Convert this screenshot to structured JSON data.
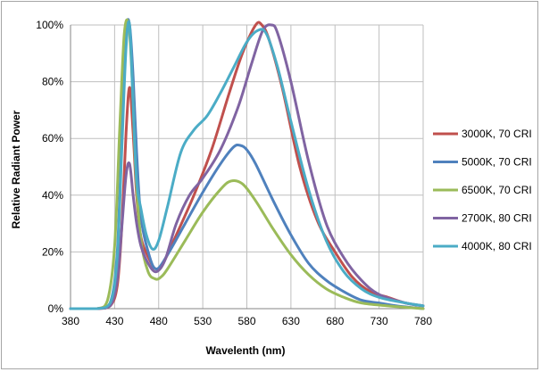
{
  "chart_data": {
    "type": "line",
    "title": "",
    "xlabel": "Wavelenth (nm)",
    "ylabel": "Relative Radiant Power",
    "xlim": [
      380,
      780
    ],
    "ylim": [
      0,
      100
    ],
    "x_ticks": [
      380,
      430,
      480,
      530,
      580,
      630,
      680,
      730,
      780
    ],
    "y_ticks": [
      0,
      20,
      40,
      60,
      80,
      100
    ],
    "y_tick_labels": [
      "0%",
      "20%",
      "40%",
      "60%",
      "80%",
      "100%"
    ],
    "grid": true,
    "legend_position": "right",
    "series": [
      {
        "name": "3000K, 70 CRI",
        "color": "#c0504d",
        "x": [
          380,
          410,
          425,
          433,
          438,
          443,
          447,
          451,
          455,
          460,
          470,
          477,
          485,
          500,
          520,
          540,
          560,
          575,
          590,
          597,
          605,
          620,
          640,
          660,
          680,
          700,
          720,
          740,
          760,
          780
        ],
        "y": [
          0,
          0,
          1,
          8,
          28,
          62,
          78,
          62,
          40,
          25,
          17,
          14,
          16,
          26,
          40,
          56,
          76,
          90,
          100,
          100,
          95,
          78,
          50,
          31,
          20,
          11,
          6,
          4,
          2,
          1
        ]
      },
      {
        "name": "5000K, 70 CRI",
        "color": "#4f81bd",
        "x": [
          380,
          410,
          425,
          433,
          438,
          443,
          447,
          451,
          455,
          460,
          470,
          478,
          490,
          510,
          530,
          550,
          565,
          573,
          580,
          590,
          610,
          630,
          650,
          670,
          690,
          710,
          730,
          750,
          780
        ],
        "y": [
          0,
          0,
          2,
          20,
          60,
          97,
          100,
          82,
          55,
          32,
          18,
          14,
          19,
          30,
          41,
          51,
          57,
          57.5,
          56,
          51,
          38,
          26,
          16,
          10,
          6,
          3,
          2,
          1,
          0
        ]
      },
      {
        "name": "6500K, 70 CRI",
        "color": "#9bbb59",
        "x": [
          380,
          410,
          422,
          430,
          436,
          441,
          446,
          450,
          454,
          460,
          468,
          476,
          482,
          490,
          510,
          530,
          550,
          562,
          575,
          590,
          610,
          630,
          650,
          670,
          690,
          710,
          740,
          780
        ],
        "y": [
          0,
          0,
          3,
          22,
          65,
          97,
          100,
          80,
          48,
          24,
          13,
          10.5,
          11,
          14,
          24,
          34,
          42,
          45,
          44,
          38,
          28,
          19,
          12,
          7,
          4,
          2,
          1,
          0
        ]
      },
      {
        "name": "2700K, 80 CRI",
        "color": "#8064a2",
        "x": [
          380,
          410,
          425,
          433,
          438,
          443,
          447,
          451,
          455,
          460,
          468,
          477,
          487,
          500,
          515,
          530,
          550,
          570,
          585,
          598,
          608,
          615,
          630,
          650,
          670,
          690,
          710,
          730,
          760,
          780
        ],
        "y": [
          0,
          0,
          1,
          10,
          28,
          47,
          51,
          40,
          30,
          22,
          16,
          13,
          17,
          30,
          40,
          46,
          56,
          71,
          86,
          98,
          100,
          97,
          80,
          52,
          30,
          18,
          10,
          5,
          2,
          1
        ]
      },
      {
        "name": "4000K, 80 CRI",
        "color": "#4bacc6",
        "x": [
          380,
          410,
          425,
          433,
          438,
          443,
          447,
          451,
          455,
          460,
          466,
          473,
          480,
          490,
          505,
          520,
          535,
          550,
          565,
          580,
          592,
          602,
          615,
          630,
          650,
          670,
          690,
          710,
          730,
          760,
          780
        ],
        "y": [
          0,
          0,
          2,
          18,
          55,
          92,
          100,
          72,
          45,
          35,
          26,
          21,
          24,
          36,
          55,
          63,
          68,
          76,
          85,
          94,
          98,
          97,
          85,
          66,
          42,
          24,
          13,
          7,
          4,
          2,
          1
        ]
      }
    ]
  }
}
